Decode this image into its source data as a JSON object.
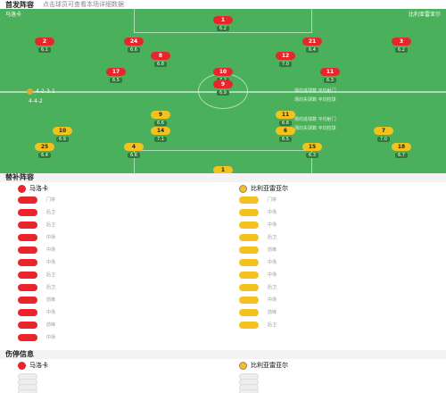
{
  "header": {
    "title": "首发阵容",
    "subtitle": "点击球员可查看本场详细数据"
  },
  "home": {
    "name": "马洛卡",
    "formation": "4-2-3-1",
    "color": "#e8252a",
    "players": [
      {
        "num": "1",
        "name": "",
        "rating": "6.2"
      },
      {
        "num": "2",
        "name": "",
        "rating": "6.1"
      },
      {
        "num": "24",
        "name": "",
        "rating": "6.6"
      },
      {
        "num": "21",
        "name": "",
        "rating": "6.4"
      },
      {
        "num": "3",
        "name": "",
        "rating": "6.2"
      },
      {
        "num": "8",
        "name": "",
        "rating": "6.8"
      },
      {
        "num": "12",
        "name": "",
        "rating": "7.0"
      },
      {
        "num": "17",
        "name": "",
        "rating": "6.5"
      },
      {
        "num": "10",
        "name": "",
        "rating": "7.2"
      },
      {
        "num": "11",
        "name": "",
        "rating": "6.3"
      },
      {
        "num": "9",
        "name": "",
        "rating": "6.9"
      }
    ],
    "stats": [
      "场均进球数 平均射门",
      "场均失球数 平均控球"
    ]
  },
  "away": {
    "name": "比利亚雷亚尔",
    "formation": "4-4-2",
    "color": "#f4c21f",
    "players": [
      {
        "num": "1",
        "name": "",
        "rating": "6.5"
      },
      {
        "num": "25",
        "name": "",
        "rating": "6.4"
      },
      {
        "num": "4",
        "name": "",
        "rating": "6.6"
      },
      {
        "num": "15",
        "name": "",
        "rating": "6.3"
      },
      {
        "num": "18",
        "name": "",
        "rating": "6.7"
      },
      {
        "num": "10",
        "name": "",
        "rating": "6.9"
      },
      {
        "num": "14",
        "name": "",
        "rating": "7.1"
      },
      {
        "num": "6",
        "name": "",
        "rating": "6.5"
      },
      {
        "num": "7",
        "name": "",
        "rating": "7.0"
      },
      {
        "num": "9",
        "name": "",
        "rating": "6.6"
      },
      {
        "num": "11",
        "name": "",
        "rating": "6.8"
      }
    ],
    "stats": [
      "场均进球数 平均射门",
      "场均失球数 平均控球"
    ]
  },
  "subs": {
    "title": "替补阵容",
    "home_title": "马洛卡",
    "away_title": "比利亚雷亚尔",
    "home": [
      {
        "num": "",
        "name": "",
        "pos": "门将"
      },
      {
        "num": "",
        "name": "",
        "pos": "后卫",
        "min": ""
      },
      {
        "num": "",
        "name": "",
        "pos": "后卫",
        "min": ""
      },
      {
        "num": "",
        "name": "",
        "pos": "中场",
        "min": ""
      },
      {
        "num": "",
        "name": "",
        "pos": "中场",
        "min": ""
      },
      {
        "num": "",
        "name": "",
        "pos": "中场"
      },
      {
        "num": "",
        "name": "",
        "pos": "后卫"
      },
      {
        "num": "",
        "name": "",
        "pos": "后卫"
      },
      {
        "num": "",
        "name": "",
        "pos": "前锋"
      },
      {
        "num": "",
        "name": "",
        "pos": "中场"
      },
      {
        "num": "",
        "name": "",
        "pos": "前锋"
      },
      {
        "num": "",
        "name": "",
        "pos": "中场"
      }
    ],
    "away": [
      {
        "num": "",
        "name": "",
        "pos": "门将"
      },
      {
        "num": "",
        "name": "",
        "pos": "中场",
        "min": ""
      },
      {
        "num": "",
        "name": "",
        "pos": "中场",
        "min": ""
      },
      {
        "num": "",
        "name": "",
        "pos": "后卫",
        "min": ""
      },
      {
        "num": "",
        "name": "",
        "pos": "前锋"
      },
      {
        "num": "",
        "name": "",
        "pos": "中场"
      },
      {
        "num": "",
        "name": "",
        "pos": "中场"
      },
      {
        "num": "",
        "name": "",
        "pos": "后卫"
      },
      {
        "num": "",
        "name": "",
        "pos": "中场"
      },
      {
        "num": "",
        "name": "",
        "pos": "前锋"
      },
      {
        "num": "",
        "name": "",
        "pos": "后卫"
      }
    ]
  },
  "injury": {
    "title": "伤停信息",
    "home_title": "马洛卡",
    "away_title": "比利亚雷亚尔",
    "home": [
      {
        "name": "",
        "pos": ""
      },
      {
        "name": "",
        "pos": ""
      },
      {
        "name": "",
        "pos": ""
      },
      {
        "name": "",
        "pos": ""
      }
    ],
    "away": [
      {
        "name": "",
        "pos": ""
      },
      {
        "name": "",
        "pos": ""
      },
      {
        "name": "",
        "pos": ""
      },
      {
        "name": "",
        "pos": ""
      }
    ]
  }
}
